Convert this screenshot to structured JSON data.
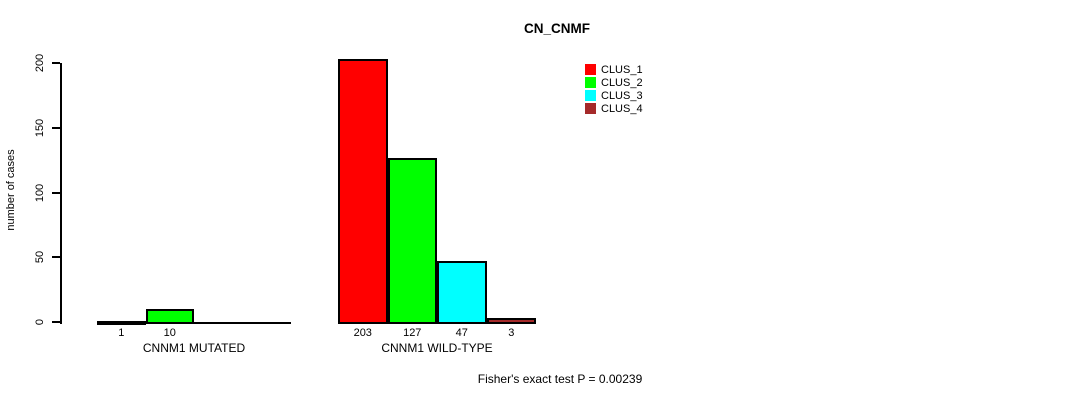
{
  "chart_data": {
    "type": "bar",
    "title": "CN_CNMF",
    "ylabel": "number of cases",
    "xlabel": "",
    "yticks": [
      0,
      50,
      100,
      150,
      200
    ],
    "ylim": [
      0,
      205
    ],
    "grid": false,
    "legend_position": "top-right-inside",
    "legend": [
      {
        "name": "CLUS_1",
        "color": "#ff0000"
      },
      {
        "name": "CLUS_2",
        "color": "#00ff00"
      },
      {
        "name": "CLUS_3",
        "color": "#00ffff"
      },
      {
        "name": "CLUS_4",
        "color": "#a52a2a"
      }
    ],
    "groups": [
      {
        "label": "CNNM1 MUTATED",
        "bars": [
          {
            "series": "CLUS_1",
            "value": 1,
            "value_label": "1"
          },
          {
            "series": "CLUS_2",
            "value": 10,
            "value_label": "10"
          }
        ],
        "slots": 4
      },
      {
        "label": "CNNM1 WILD-TYPE",
        "bars": [
          {
            "series": "CLUS_1",
            "value": 203,
            "value_label": "203"
          },
          {
            "series": "CLUS_2",
            "value": 127,
            "value_label": "127"
          },
          {
            "series": "CLUS_3",
            "value": 47,
            "value_label": "47"
          },
          {
            "series": "CLUS_4",
            "value": 3,
            "value_label": "3"
          }
        ],
        "slots": 4
      }
    ],
    "annotation": "Fisher's exact test P = 0.00239"
  }
}
